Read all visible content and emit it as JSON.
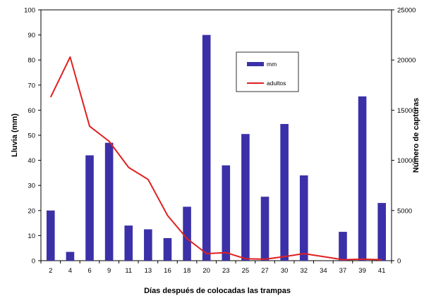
{
  "chart_data": {
    "type": "bar",
    "categories": [
      "2",
      "4",
      "6",
      "9",
      "11",
      "13",
      "16",
      "18",
      "20",
      "23",
      "25",
      "27",
      "30",
      "32",
      "34",
      "37",
      "39",
      "41"
    ],
    "series": [
      {
        "name": "mm",
        "type": "bar",
        "axis": "left",
        "color": "#3b30a8",
        "values": [
          20,
          3.5,
          42,
          47,
          14,
          12.5,
          9,
          21.5,
          90,
          38,
          50.5,
          25.5,
          54.5,
          34,
          0,
          11.5,
          65.5,
          23
        ]
      },
      {
        "name": "adultos",
        "type": "line",
        "axis": "right",
        "color": "#e02020",
        "values": [
          16300,
          20300,
          13400,
          11900,
          9300,
          8100,
          4500,
          2200,
          700,
          800,
          200,
          150,
          400,
          700,
          400,
          100,
          150,
          100
        ]
      }
    ],
    "xlabel": "Días después de colocadas las trampas",
    "ylabel": "Lluvia (mm)",
    "y2label": "Número de capturas",
    "ylim": [
      0,
      100
    ],
    "y2lim": [
      0,
      25000
    ],
    "yticks": [
      "0",
      "10",
      "20",
      "30",
      "40",
      "50",
      "60",
      "70",
      "80",
      "90",
      "100"
    ],
    "y2ticks": [
      "0",
      "5000",
      "10000",
      "15000",
      "20000",
      "25000"
    ],
    "grid": false,
    "legend": {
      "placement": "top-right",
      "entries": [
        "mm",
        "adultos"
      ]
    }
  }
}
